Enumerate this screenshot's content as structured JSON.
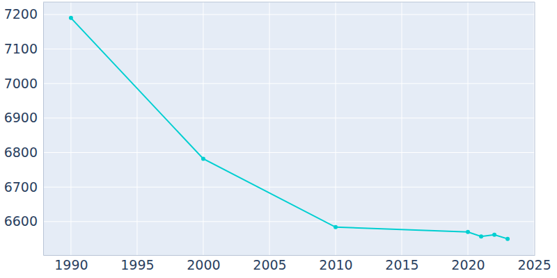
{
  "chart_data": {
    "type": "line",
    "x": [
      1990,
      2000,
      2010,
      2020,
      2021,
      2022,
      2023
    ],
    "y": [
      7190,
      6782,
      6584,
      6570,
      6557,
      6562,
      6550
    ],
    "color": "#00cfd1",
    "marker": "circle",
    "xlim": [
      1987.9,
      2025.05
    ],
    "ylim": [
      6503,
      7236
    ],
    "xticks": [
      1990,
      1995,
      2000,
      2005,
      2010,
      2015,
      2020,
      2025
    ],
    "yticks": [
      6600,
      6700,
      6800,
      6900,
      7000,
      7100,
      7200
    ],
    "grid": true
  }
}
